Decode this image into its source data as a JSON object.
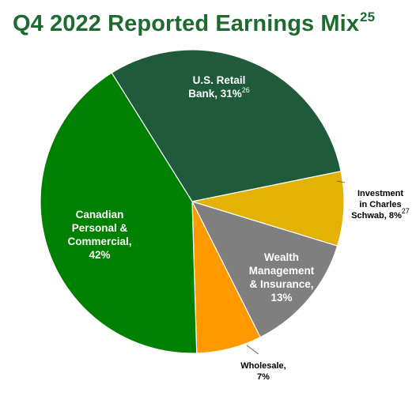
{
  "title": {
    "text": "Q4 2022 Reported Earnings Mix",
    "sup": "25"
  },
  "chart_data": {
    "type": "pie",
    "title": "Q4 2022 Reported Earnings Mix",
    "start_angle_deg": 150,
    "direction": "clockwise",
    "slices": [
      {
        "label": "U.S. Retail Bank",
        "value": 31,
        "value_text": "31%",
        "footnote": "26",
        "color": "#1f5a3a",
        "label_lines": [
          "U.S. Retail",
          "Bank, 31%"
        ],
        "label_placement": "inside"
      },
      {
        "label": "Investment in Charles Schwab",
        "value": 8,
        "value_text": "8%",
        "footnote": "27",
        "color": "#e3b205",
        "label_lines": [
          "Investment",
          "in Charles",
          "Schwab, 8%"
        ],
        "label_placement": "outside"
      },
      {
        "label": "Wealth Management & Insurance",
        "value": 13,
        "value_text": "13%",
        "footnote": "",
        "color": "#7f7f7f",
        "label_lines": [
          "Wealth",
          "Management",
          "& Insurance,",
          "13%"
        ],
        "label_placement": "inside"
      },
      {
        "label": "Wholesale",
        "value": 7,
        "value_text": "7%",
        "footnote": "",
        "color": "#ff9900",
        "label_lines": [
          "Wholesale,",
          "7%"
        ],
        "label_placement": "outside"
      },
      {
        "label": "Canadian Personal & Commercial",
        "value": 42,
        "value_text": "42%",
        "footnote": "",
        "color": "#008000",
        "label_lines": [
          "Canadian",
          "Personal &",
          "Commercial,",
          "42%"
        ],
        "label_placement": "inside"
      }
    ]
  }
}
